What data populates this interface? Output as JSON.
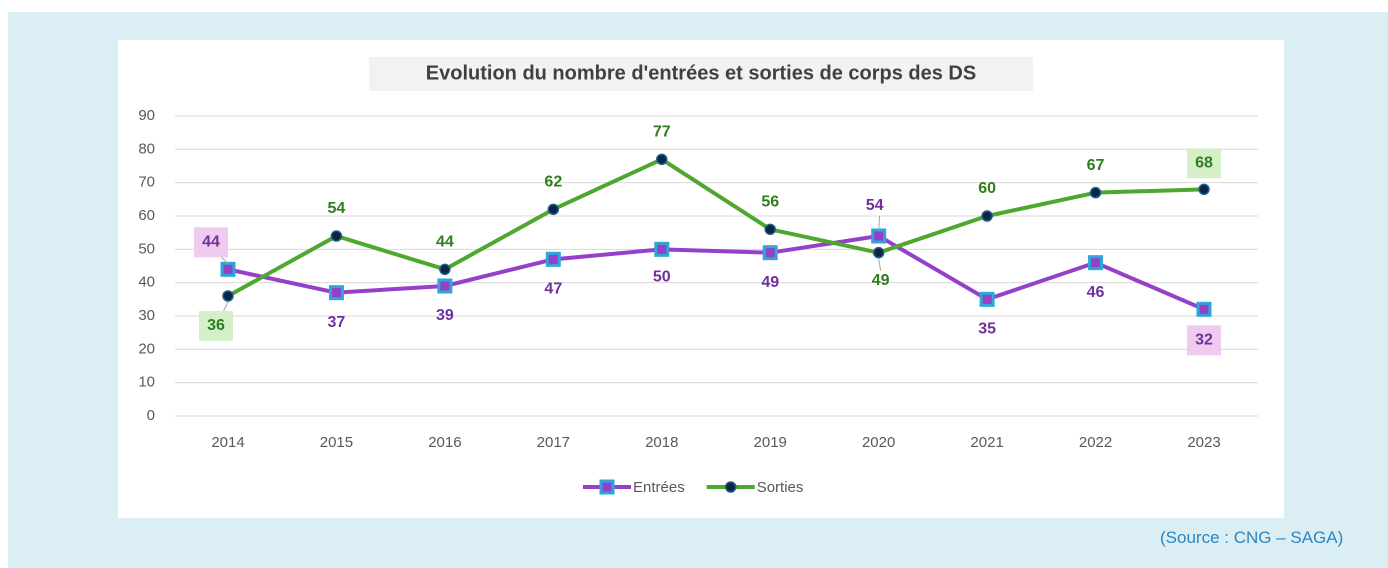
{
  "chart_data": {
    "type": "line",
    "title": "Evolution du nombre d'entrées et sorties de corps des DS",
    "categories": [
      "2014",
      "2015",
      "2016",
      "2017",
      "2018",
      "2019",
      "2020",
      "2021",
      "2022",
      "2023"
    ],
    "series": [
      {
        "name": "Entrées",
        "color": "#9440c8",
        "values": [
          44,
          37,
          39,
          47,
          50,
          49,
          54,
          35,
          46,
          32
        ]
      },
      {
        "name": "Sorties",
        "color": "#4ea72e",
        "values": [
          36,
          54,
          44,
          62,
          77,
          56,
          49,
          60,
          67,
          68
        ]
      }
    ],
    "ylim": [
      0,
      90
    ],
    "yticks": [
      0,
      10,
      20,
      30,
      40,
      50,
      60,
      70,
      80,
      90
    ],
    "grid": true,
    "legend": "bottom",
    "source": "(Source : CNG – SAGA)"
  }
}
